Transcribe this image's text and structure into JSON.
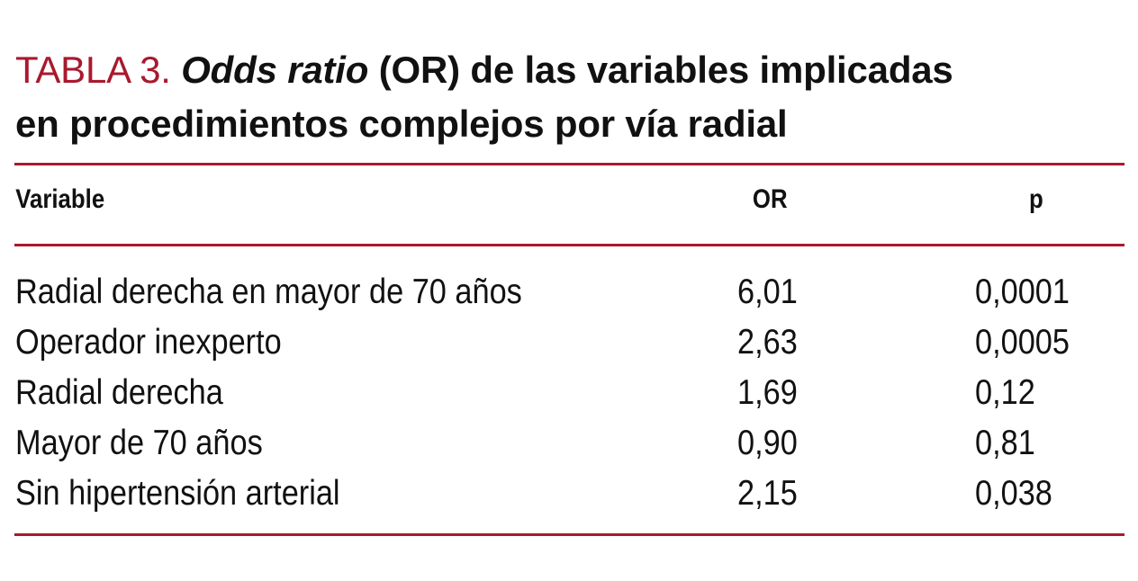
{
  "title": {
    "label": "TABLA 3.",
    "italic": "Odds ratio",
    "line1_rest": "(OR) de las variables implicadas",
    "line2": "en procedimientos complejos por vía radial"
  },
  "table": {
    "headers": {
      "variable": "Variable",
      "or": "OR",
      "p": "p"
    },
    "rows": [
      {
        "variable": "Radial derecha en mayor de 70 años",
        "or": "6,01",
        "p": "0,0001"
      },
      {
        "variable": "Operador inexperto",
        "or": "2,63",
        "p": "0,0005"
      },
      {
        "variable": "Radial derecha",
        "or": "1,69",
        "p": "0,12"
      },
      {
        "variable": "Mayor de 70 años",
        "or": "0,90",
        "p": "0,81"
      },
      {
        "variable": "Sin hipertensión arterial",
        "or": "2,15",
        "p": "0,038"
      }
    ]
  },
  "colors": {
    "accent": "#a8192e",
    "text": "#111111"
  }
}
